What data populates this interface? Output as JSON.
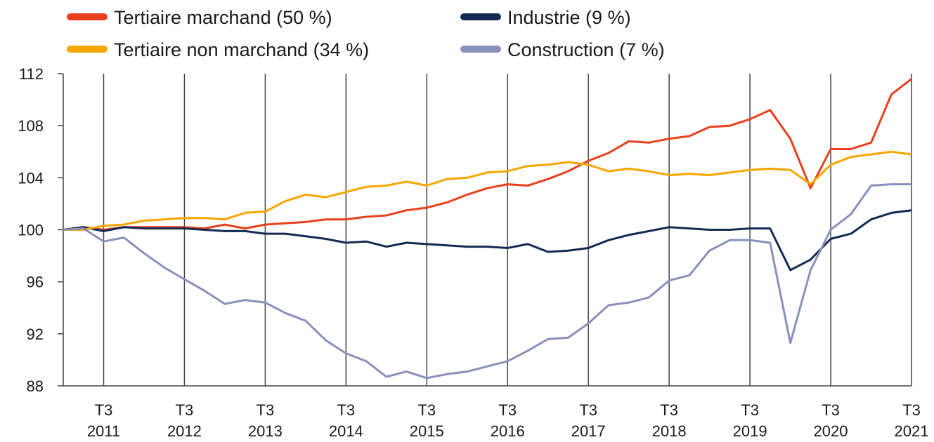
{
  "chart_data": {
    "type": "line",
    "categories": [
      null,
      null,
      "T3 2011",
      null,
      null,
      null,
      "T3 2012",
      null,
      null,
      null,
      "T3 2013",
      null,
      null,
      null,
      "T3 2014",
      null,
      null,
      null,
      "T3 2015",
      null,
      null,
      null,
      "T3 2016",
      null,
      null,
      null,
      "T3 2017",
      null,
      null,
      null,
      "T3 2018",
      null,
      null,
      null,
      "T3 2019",
      null,
      null,
      null,
      "T3 2020",
      null,
      null,
      null,
      "T3 2021"
    ],
    "series": [
      {
        "name": "Tertiaire marchand (50 %)",
        "color": "#e8401c",
        "values": [
          100,
          100.2,
          100.0,
          100.2,
          100.2,
          100.2,
          100.2,
          100.1,
          100.4,
          100.1,
          100.4,
          100.5,
          100.6,
          100.8,
          100.8,
          101.0,
          101.1,
          101.5,
          101.7,
          102.1,
          102.7,
          103.2,
          103.5,
          103.4,
          103.9,
          104.5,
          105.3,
          105.9,
          106.8,
          106.7,
          107.0,
          107.2,
          107.9,
          108.0,
          108.5,
          109.2,
          107.0,
          103.2,
          106.2,
          106.2,
          106.7,
          110.4,
          111.6
        ]
      },
      {
        "name": "Industrie (9 %)",
        "color": "#132a53",
        "values": [
          100,
          100.2,
          99.9,
          100.2,
          100.1,
          100.1,
          100.1,
          100.0,
          99.9,
          99.9,
          99.7,
          99.7,
          99.5,
          99.3,
          99.0,
          99.1,
          98.7,
          99.0,
          98.9,
          98.8,
          98.7,
          98.7,
          98.6,
          98.9,
          98.3,
          98.4,
          98.6,
          99.2,
          99.6,
          99.9,
          100.2,
          100.1,
          100.0,
          100.0,
          100.1,
          100.1,
          96.9,
          97.7,
          99.3,
          99.7,
          100.8,
          101.3,
          101.5
        ]
      },
      {
        "name": "Tertiaire non marchand (34 %)",
        "color": "#f7a600",
        "values": [
          100,
          100.0,
          100.3,
          100.4,
          100.7,
          100.8,
          100.9,
          100.9,
          100.8,
          101.3,
          101.4,
          102.2,
          102.7,
          102.5,
          102.9,
          103.3,
          103.4,
          103.7,
          103.4,
          103.9,
          104.0,
          104.4,
          104.5,
          104.9,
          105.0,
          105.2,
          105.0,
          104.5,
          104.7,
          104.5,
          104.2,
          104.3,
          104.2,
          104.4,
          104.6,
          104.7,
          104.6,
          103.5,
          105.0,
          105.6,
          105.8,
          106.0,
          105.8
        ]
      },
      {
        "name": "Construction (7 %)",
        "color": "#8890bb",
        "values": [
          100,
          100.1,
          99.1,
          99.4,
          98.2,
          97.1,
          96.2,
          95.3,
          94.3,
          94.6,
          94.4,
          93.6,
          93.0,
          91.5,
          90.5,
          89.9,
          88.7,
          89.1,
          88.6,
          88.9,
          89.1,
          89.5,
          89.9,
          90.7,
          91.6,
          91.7,
          92.8,
          94.2,
          94.4,
          94.8,
          96.1,
          96.5,
          98.4,
          99.2,
          99.2,
          99.0,
          91.3,
          96.9,
          100.0,
          101.2,
          103.4,
          103.5,
          103.5
        ]
      }
    ],
    "ylim": [
      88,
      112
    ],
    "yticks": [
      88,
      92,
      96,
      100,
      104,
      108,
      112
    ],
    "grid": true
  }
}
